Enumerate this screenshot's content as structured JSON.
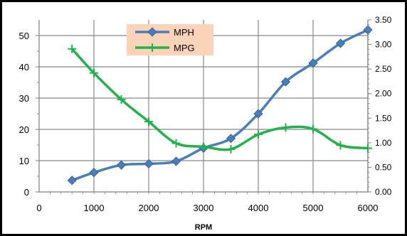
{
  "chart_data": {
    "type": "line",
    "xlabel": "RPM",
    "x_ticks": [
      "0",
      "1000",
      "2000",
      "3000",
      "4000",
      "5000",
      "6000"
    ],
    "xlim": [
      0,
      6000
    ],
    "y_left_ticks": [
      "0",
      "10",
      "20",
      "30",
      "40",
      "50"
    ],
    "ylim_left": [
      0,
      55
    ],
    "y_right_ticks": [
      "0.00",
      "0.50",
      "1.00",
      "1.50",
      "2.00",
      "2.50",
      "3.00",
      "3.50"
    ],
    "ylim_right": [
      0,
      3.5
    ],
    "grid": true,
    "legend_position": "top-center",
    "series": [
      {
        "name": "MPH",
        "axis": "left",
        "color": "#4a7ebb",
        "marker": "diamond",
        "x": [
          600,
          1000,
          1500,
          2000,
          2500,
          3000,
          3500,
          4000,
          4500,
          5000,
          5500,
          6000
        ],
        "values": [
          3.7,
          6.2,
          8.6,
          9.0,
          9.8,
          14.0,
          17.1,
          25.0,
          35.2,
          41.2,
          47.5,
          51.8
        ]
      },
      {
        "name": "MPG",
        "axis": "right",
        "color": "#22b14c",
        "marker": "plus",
        "x": [
          600,
          1000,
          1500,
          2000,
          2500,
          3000,
          3500,
          4000,
          4500,
          5000,
          5500,
          6000
        ],
        "values": [
          2.91,
          2.42,
          1.88,
          1.43,
          0.99,
          0.92,
          0.87,
          1.17,
          1.31,
          1.28,
          0.95,
          0.89
        ]
      }
    ]
  }
}
